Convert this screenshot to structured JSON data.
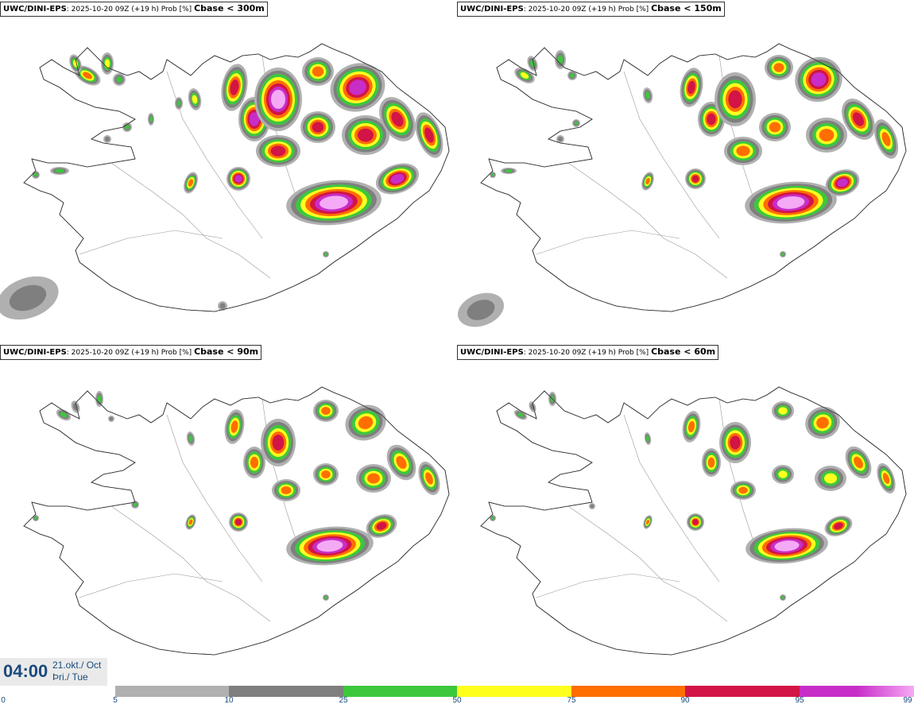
{
  "panels": [
    {
      "model": "UWC/DINI-EPS",
      "run": "2025-10-20 09Z (+19 h) Prob [%]",
      "field": "Cbase < 300m"
    },
    {
      "model": "UWC/DINI-EPS",
      "run": "2025-10-20 09Z (+19 h) Prob [%]",
      "field": "Cbase < 150m"
    },
    {
      "model": "UWC/DINI-EPS",
      "run": "2025-10-20 09Z (+19 h) Prob [%]",
      "field": "Cbase < 90m"
    },
    {
      "model": "UWC/DINI-EPS",
      "run": "2025-10-20 09Z (+19 h) Prob [%]",
      "field": "Cbase < 60m"
    }
  ],
  "valid": {
    "time": "04:00",
    "date_line1": "21.okt./ Oct",
    "date_line2": "Þri./ Tue"
  },
  "legend": {
    "ticks": [
      "0",
      "5",
      "10",
      "25",
      "50",
      "75",
      "90",
      "95",
      "99"
    ],
    "colors": [
      "#b0b0b0",
      "#7f7f7f",
      "#3cc83c",
      "#ffff1e",
      "#ff6e00",
      "#d21446",
      "#c82dc8",
      "#f5aaf5"
    ]
  },
  "map": {
    "land_color": "#ffffff",
    "coast_color": "#333333"
  }
}
